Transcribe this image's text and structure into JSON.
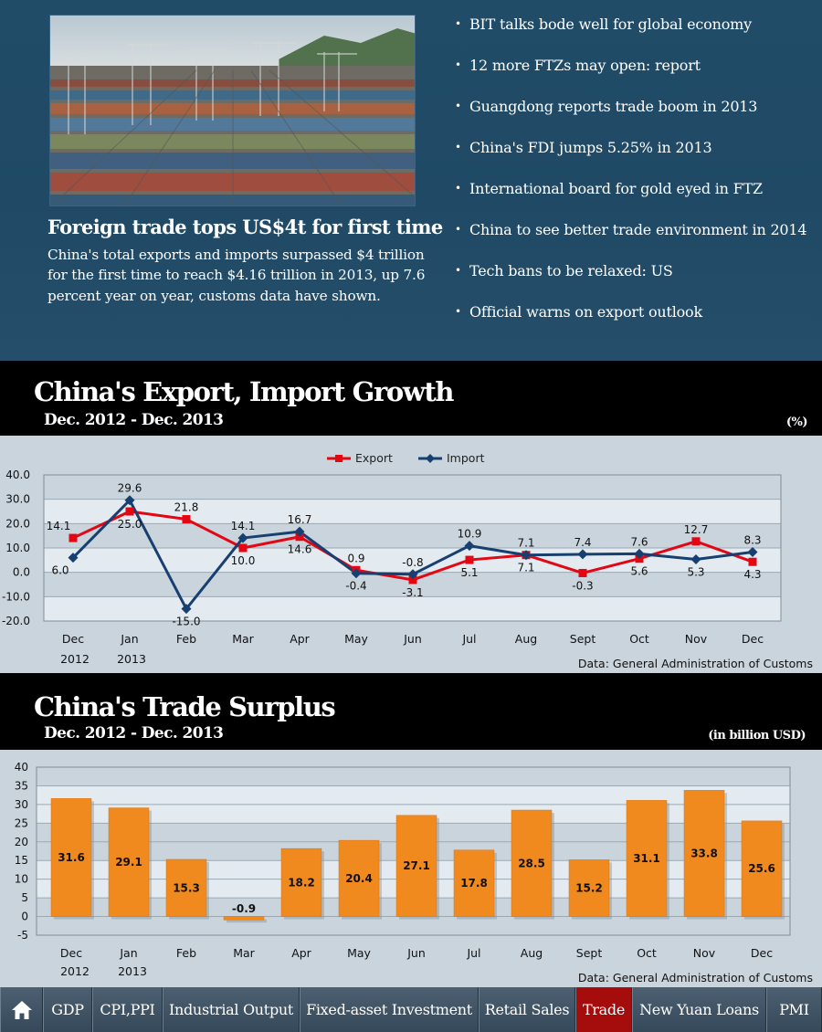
{
  "feature": {
    "headline": "Foreign trade tops US$4t for first time",
    "summary": "China's total exports and imports surpassed $4 trillion for the first time to reach $4.16 trillion in 2013, up 7.6 percent year on year, customs data have shown."
  },
  "news_items": [
    "BIT talks bode well for global economy",
    "12 more FTZs may open: report",
    "Guangdong reports trade boom in 2013",
    "China's FDI jumps 5.25% in 2013",
    "International board for gold eyed in FTZ",
    "China to see better trade environment in 2014",
    "Tech bans to be relaxed: US",
    "Official warns on export outlook"
  ],
  "growth_section": {
    "title": "China's Export, Import Growth",
    "period": "Dec. 2012  - Dec. 2013",
    "unit": "(%)",
    "source": "Data: General Administration of Customs"
  },
  "surplus_section": {
    "title": "China's Trade Surplus",
    "period": "Dec. 2012  - Dec. 2013",
    "unit": "(in billion USD)",
    "source": "Data: General Administration of Customs"
  },
  "chart_data": [
    {
      "type": "line",
      "title": "China's Export, Import Growth",
      "categories": [
        "Dec",
        "Jan",
        "Feb",
        "Mar",
        "Apr",
        "May",
        "Jun",
        "Jul",
        "Aug",
        "Sept",
        "Oct",
        "Nov",
        "Dec"
      ],
      "year_labels": [
        "2012",
        "2013"
      ],
      "series": [
        {
          "name": "Export",
          "color": "#e30613",
          "values": [
            14.1,
            25.0,
            21.8,
            10.0,
            14.6,
            0.9,
            -3.1,
            5.1,
            7.1,
            -0.3,
            5.6,
            12.7,
            4.3
          ]
        },
        {
          "name": "Import",
          "color": "#173f70",
          "values": [
            6.0,
            29.6,
            -15.0,
            14.1,
            16.7,
            -0.4,
            -0.8,
            10.9,
            7.1,
            7.4,
            7.6,
            5.3,
            8.3
          ]
        }
      ],
      "value_labels": {
        "upper": [
          "14.1",
          "29.6",
          "21.8",
          "14.1",
          "16.7",
          "0.9",
          "-0.8",
          "10.9",
          "7.1",
          "7.4",
          "7.6",
          "12.7",
          "8.3"
        ],
        "lower": [
          "6.0",
          "25.0",
          "-15.0",
          "10.0",
          "14.6",
          "-0.4",
          "-3.1",
          "5.1",
          "7.1",
          "-0.3",
          "5.6",
          "5.3",
          "4.3"
        ]
      },
      "ylim": [
        -20,
        40
      ],
      "yticks": [
        "40.0",
        "30.0",
        "20.0",
        "10.0",
        "0.0",
        "-10.0",
        "-20.0"
      ],
      "legend": "top-center"
    },
    {
      "type": "bar",
      "title": "China's Trade Surplus",
      "categories": [
        "Dec",
        "Jan",
        "Feb",
        "Mar",
        "Apr",
        "May",
        "Jun",
        "Jul",
        "Aug",
        "Sept",
        "Oct",
        "Nov",
        "Dec"
      ],
      "year_labels": [
        "2012",
        "2013"
      ],
      "values": [
        31.6,
        29.1,
        15.3,
        -0.9,
        18.2,
        20.4,
        27.1,
        17.8,
        28.5,
        15.2,
        31.1,
        33.8,
        25.6
      ],
      "labels": [
        "31.6",
        "29.1",
        "15.3",
        "-0.9",
        "18.2",
        "20.4",
        "27.1",
        "17.8",
        "28.5",
        "15.2",
        "31.1",
        "33.8",
        "25.6"
      ],
      "color": "#f0891e",
      "ylim": [
        -5,
        40
      ],
      "yticks": [
        "40",
        "35",
        "30",
        "25",
        "20",
        "15",
        "10",
        "5",
        "0",
        "-5"
      ]
    }
  ],
  "nav": {
    "home_icon": "home-icon",
    "items": [
      "GDP",
      "CPI,PPI",
      "Industrial Output",
      "Fixed-asset Investment",
      "Retail Sales",
      "Trade",
      "New Yuan Loans",
      "PMI"
    ],
    "active": "Trade",
    "active_color": "#a50d0d"
  }
}
